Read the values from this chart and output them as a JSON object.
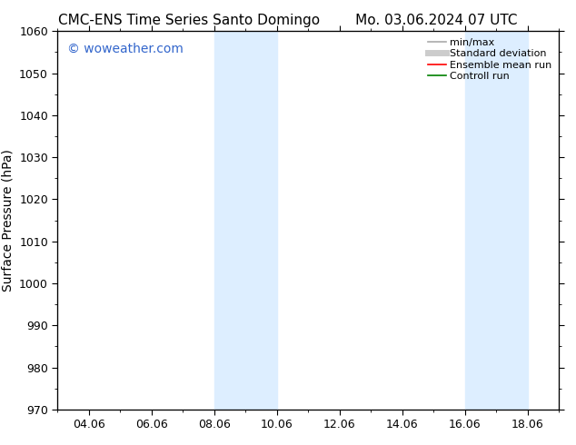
{
  "title_left": "CMC-ENS Time Series Santo Domingo",
  "title_right": "Mo. 03.06.2024 07 UTC",
  "ylabel": "Surface Pressure (hPa)",
  "ylim": [
    970,
    1060
  ],
  "yticks": [
    970,
    980,
    990,
    1000,
    1010,
    1020,
    1030,
    1040,
    1050,
    1060
  ],
  "xlim": [
    0,
    16
  ],
  "xtick_labels": [
    "04.06",
    "06.06",
    "08.06",
    "10.06",
    "12.06",
    "14.06",
    "16.06",
    "18.06"
  ],
  "xtick_positions": [
    1,
    3,
    5,
    7,
    9,
    11,
    13,
    15
  ],
  "shaded_regions": [
    {
      "x_start": 5,
      "x_end": 7
    },
    {
      "x_start": 13,
      "x_end": 15
    }
  ],
  "shaded_color": "#ddeeff",
  "watermark_text": "© woweather.com",
  "watermark_color": "#3366cc",
  "legend_items": [
    {
      "label": "min/max",
      "color": "#aaaaaa",
      "lw": 1.2,
      "style": "solid"
    },
    {
      "label": "Standard deviation",
      "color": "#cccccc",
      "lw": 5,
      "style": "solid"
    },
    {
      "label": "Ensemble mean run",
      "color": "#ff0000",
      "lw": 1.2,
      "style": "solid"
    },
    {
      "label": "Controll run",
      "color": "#008000",
      "lw": 1.2,
      "style": "solid"
    }
  ],
  "title_fontsize": 11,
  "tick_fontsize": 9,
  "ylabel_fontsize": 10,
  "watermark_fontsize": 10,
  "background_color": "#ffffff"
}
